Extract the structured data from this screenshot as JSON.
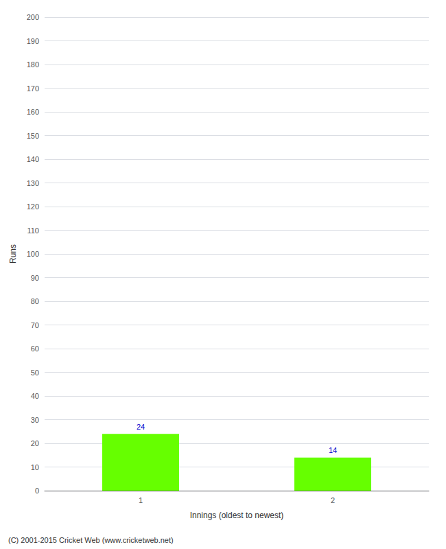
{
  "chart_data": {
    "type": "bar",
    "categories": [
      "1",
      "2"
    ],
    "values": [
      24,
      14
    ],
    "color": "#66ff00",
    "xlabel": "Innings (oldest to newest)",
    "ylabel": "Runs",
    "ylim": [
      0,
      200
    ],
    "yticks": [
      0,
      10,
      20,
      30,
      40,
      50,
      60,
      70,
      80,
      90,
      100,
      110,
      120,
      130,
      140,
      150,
      160,
      170,
      180,
      190,
      200
    ],
    "grid": true,
    "data_labels": true,
    "annotations": [
      "(C) 2001-2015 Cricket Web (www.cricketweb.net)"
    ]
  }
}
